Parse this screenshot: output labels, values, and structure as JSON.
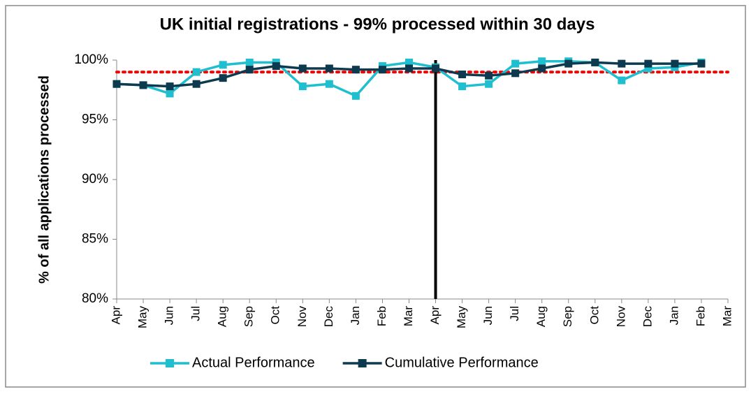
{
  "chart_data": {
    "type": "line",
    "title": "UK initial registrations - 99% processed within 30 days",
    "y_label": "% of all applications processed",
    "categories": [
      "Apr",
      "May",
      "Jun",
      "Jul",
      "Aug",
      "Sep",
      "Oct",
      "Nov",
      "Dec",
      "Jan",
      "Feb",
      "Mar",
      "Apr",
      "May",
      "Jun",
      "Jul",
      "Aug",
      "Sep",
      "Oct",
      "Nov",
      "Dec",
      "Jan",
      "Feb",
      "Mar"
    ],
    "series": [
      {
        "name": "Actual Performance",
        "color": "#1fbfcf",
        "values": [
          98.0,
          97.9,
          97.2,
          99.0,
          99.6,
          99.8,
          99.8,
          97.8,
          98.0,
          97.0,
          99.5,
          99.8,
          99.4,
          97.8,
          98.0,
          99.7,
          99.9,
          99.9,
          99.8,
          98.3,
          99.3,
          99.4,
          99.8,
          null
        ]
      },
      {
        "name": "Cumulative Performance",
        "color": "#0d3a4f",
        "values": [
          98.0,
          97.9,
          97.8,
          98.0,
          98.5,
          99.2,
          99.5,
          99.3,
          99.3,
          99.2,
          99.2,
          99.3,
          99.3,
          98.8,
          98.7,
          98.9,
          99.3,
          99.7,
          99.8,
          99.7,
          99.7,
          99.7,
          99.7,
          null
        ]
      }
    ],
    "target_line": {
      "value": 99,
      "color": "#ff0000"
    },
    "ylim": [
      80,
      100
    ],
    "yticks": [
      {
        "value": 80,
        "label": "80%"
      },
      {
        "value": 85,
        "label": "85%"
      },
      {
        "value": 90,
        "label": "90%"
      },
      {
        "value": 95,
        "label": "95%"
      },
      {
        "value": 100,
        "label": "100%"
      }
    ],
    "grid": false,
    "legend": "bottom"
  }
}
